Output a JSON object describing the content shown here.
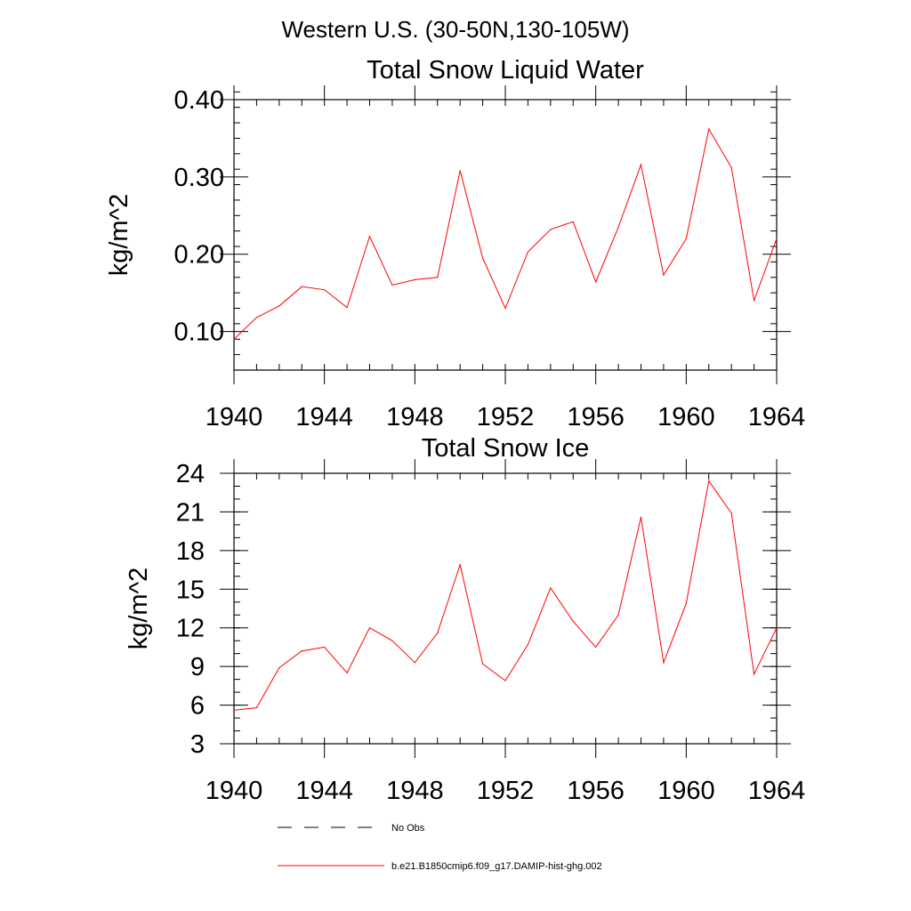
{
  "figure": {
    "supertitle": "Western U.S. (30-50N,130-105W)"
  },
  "chart_data": [
    {
      "type": "line",
      "title": "Total Snow Liquid Water",
      "xlabel": "",
      "ylabel": "kg/m^2",
      "xlim": [
        1940,
        1964
      ],
      "ylim": [
        0.05,
        0.4
      ],
      "x_ticks": [
        1940,
        1944,
        1948,
        1952,
        1956,
        1960,
        1964
      ],
      "y_ticks": [
        0.1,
        0.2,
        0.3,
        0.4
      ],
      "y_tick_labels": [
        "0.10",
        "0.20",
        "0.30",
        "0.40"
      ],
      "x_minor_step": 1,
      "y_minor_step": 0.02,
      "grid": false,
      "x": [
        1940,
        1941,
        1942,
        1943,
        1944,
        1945,
        1946,
        1947,
        1948,
        1949,
        1950,
        1951,
        1952,
        1953,
        1954,
        1955,
        1956,
        1957,
        1958,
        1959,
        1960,
        1961,
        1962,
        1963,
        1964
      ],
      "series": [
        {
          "name": "b.e21.B1850cmip6.f09_g17.DAMIP-hist-ghg.002",
          "color": "#ff0000",
          "values": [
            0.09,
            0.118,
            0.133,
            0.158,
            0.154,
            0.131,
            0.223,
            0.16,
            0.167,
            0.17,
            0.308,
            0.195,
            0.13,
            0.203,
            0.232,
            0.242,
            0.164,
            0.235,
            0.316,
            0.173,
            0.22,
            0.362,
            0.312,
            0.14,
            0.22
          ]
        }
      ]
    },
    {
      "type": "line",
      "title": "Total Snow Ice",
      "xlabel": "",
      "ylabel": "kg/m^2",
      "xlim": [
        1940,
        1964
      ],
      "ylim": [
        3,
        24
      ],
      "x_ticks": [
        1940,
        1944,
        1948,
        1952,
        1956,
        1960,
        1964
      ],
      "y_ticks": [
        3,
        6,
        9,
        12,
        15,
        18,
        21,
        24
      ],
      "y_tick_labels": [
        "3",
        "6",
        "9",
        "12",
        "15",
        "18",
        "21",
        "24"
      ],
      "x_minor_step": 1,
      "y_minor_step": 1,
      "grid": false,
      "x": [
        1940,
        1941,
        1942,
        1943,
        1944,
        1945,
        1946,
        1947,
        1948,
        1949,
        1950,
        1951,
        1952,
        1953,
        1954,
        1955,
        1956,
        1957,
        1958,
        1959,
        1960,
        1961,
        1962,
        1963,
        1964
      ],
      "series": [
        {
          "name": "b.e21.B1850cmip6.f09_g17.DAMIP-hist-ghg.002",
          "color": "#ff0000",
          "values": [
            5.6,
            5.8,
            8.9,
            10.2,
            10.5,
            8.5,
            12.0,
            11.0,
            9.3,
            11.6,
            16.9,
            9.2,
            7.9,
            10.7,
            15.1,
            12.5,
            10.5,
            13.0,
            20.6,
            9.3,
            13.9,
            23.4,
            20.9,
            8.4,
            12.0
          ]
        }
      ]
    }
  ],
  "legend": {
    "items": [
      {
        "label": "No Obs",
        "style": "dashed",
        "color": "#000000"
      },
      {
        "label": "b.e21.B1850cmip6.f09_g17.DAMIP-hist-ghg.002",
        "style": "solid",
        "color": "#ff0000"
      }
    ]
  }
}
